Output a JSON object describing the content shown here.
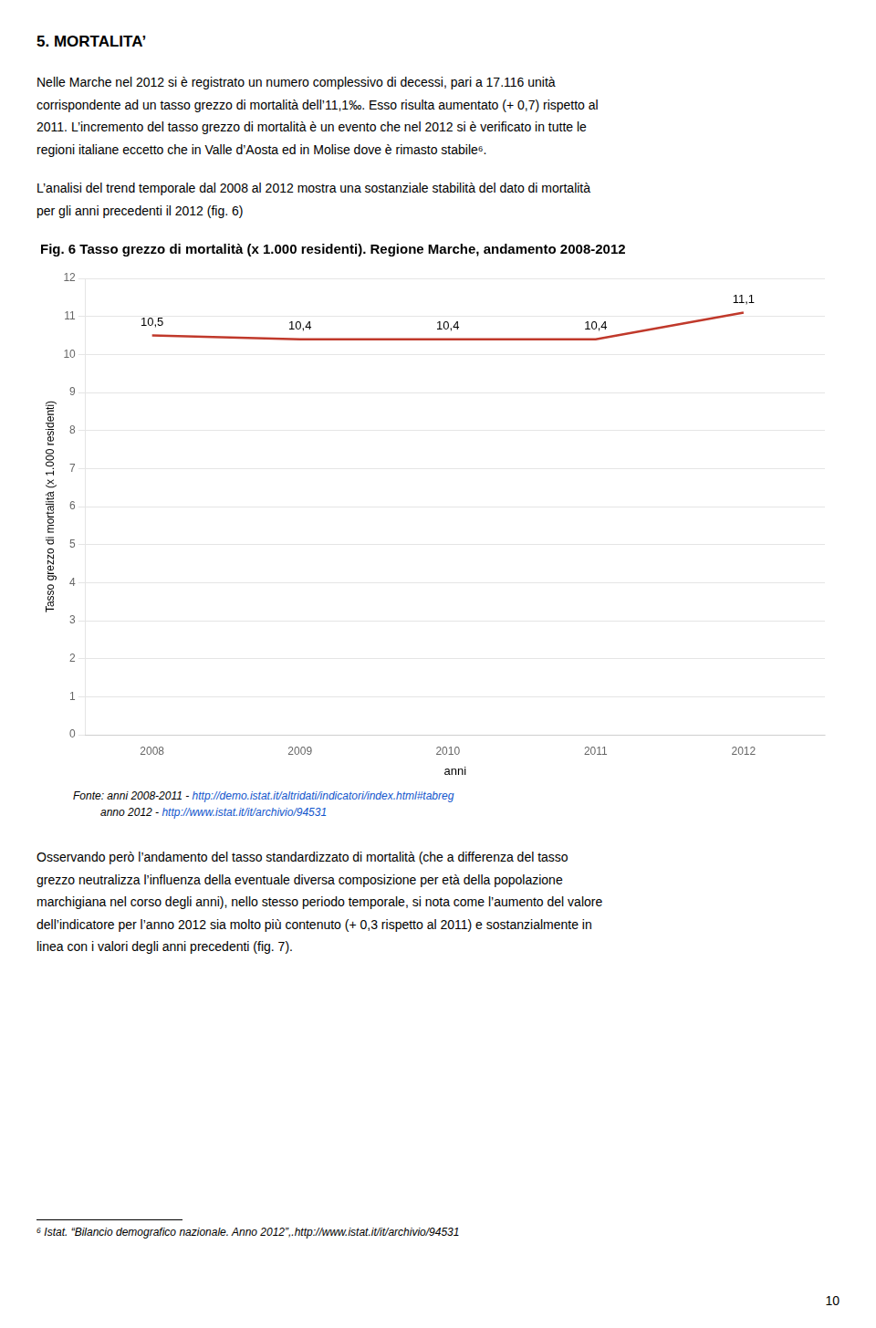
{
  "chart_data": {
    "type": "line",
    "title": "Fig. 6 Tasso grezzo di mortalità (x 1.000 residenti). Regione Marche, andamento 2008-2012",
    "x_label": "anni",
    "y_label": "Tasso grezzo di mortalità (x 1.000 residenti)",
    "x": [
      2008,
      2009,
      2010,
      2011,
      2012
    ],
    "values": [
      10.5,
      10.4,
      10.4,
      10.4,
      11.1
    ],
    "value_labels": [
      "10,5",
      "10,4",
      "10,4",
      "10,4",
      "11,1"
    ],
    "data_labels": true,
    "color": "#C0392B",
    "xlim": [
      2007.55,
      2012.55
    ],
    "xticks": [
      2008,
      2009,
      2010,
      2011,
      2012
    ],
    "ylim": [
      0,
      12
    ],
    "yticks": [
      0,
      1,
      2,
      3,
      4,
      5,
      6,
      7,
      8,
      9,
      10,
      11,
      12
    ],
    "grid": true,
    "annotations": [
      "5. MORTALITA’",
      "Nelle Marche nel 2012 si è registrato un numero complessivo di decessi, pari a 17.116 unità\ncorrispondente ad un tasso grezzo di mortalità dell’11,1‰. Esso risulta aumentato (+ 0,7) rispetto al\n2011. L’incremento del tasso grezzo di mortalità è un evento che nel 2012 si è verificato in tutte le\nregioni italiane eccetto che in Valle d’Aosta ed in Molise dove è rimasto stabile⁶.",
      "L’analisi del trend temporale dal 2008 al 2012 mostra una sostanziale stabilità del dato di mortalità\nper gli anni precedenti il 2012 (fig. 6)",
      [
        {
          "text": "Fonte: anni 2008-2011 - "
        },
        {
          "text": "http://demo.istat.it/altridati/indicatori/index.html#tabreg",
          "color": "#1155CC"
        }
      ],
      [
        {
          "text": "anno 2012 - "
        },
        {
          "text": "http://www.istat.it/it/archivio/94531",
          "color": "#1155CC"
        }
      ],
      "Osservando però l’andamento del tasso standardizzato di mortalità (che a differenza del tasso\ngrezzo neutralizza l’influenza della eventuale diversa composizione per età della popolazione\nmarchigiana nel corso degli anni), nello stesso periodo temporale, si nota come l’aumento del valore\ndell’indicatore per l’anno 2012 sia molto più contenuto (+ 0,3 rispetto al 2011) e sostanzialmente in\nlinea con i valori degli anni precedenti (fig. 7).",
      "⁶ Istat. “Bilancio demografico nazionale. Anno 2012”,.http://www.istat.it/it/archivio/94531",
      "10"
    ]
  }
}
